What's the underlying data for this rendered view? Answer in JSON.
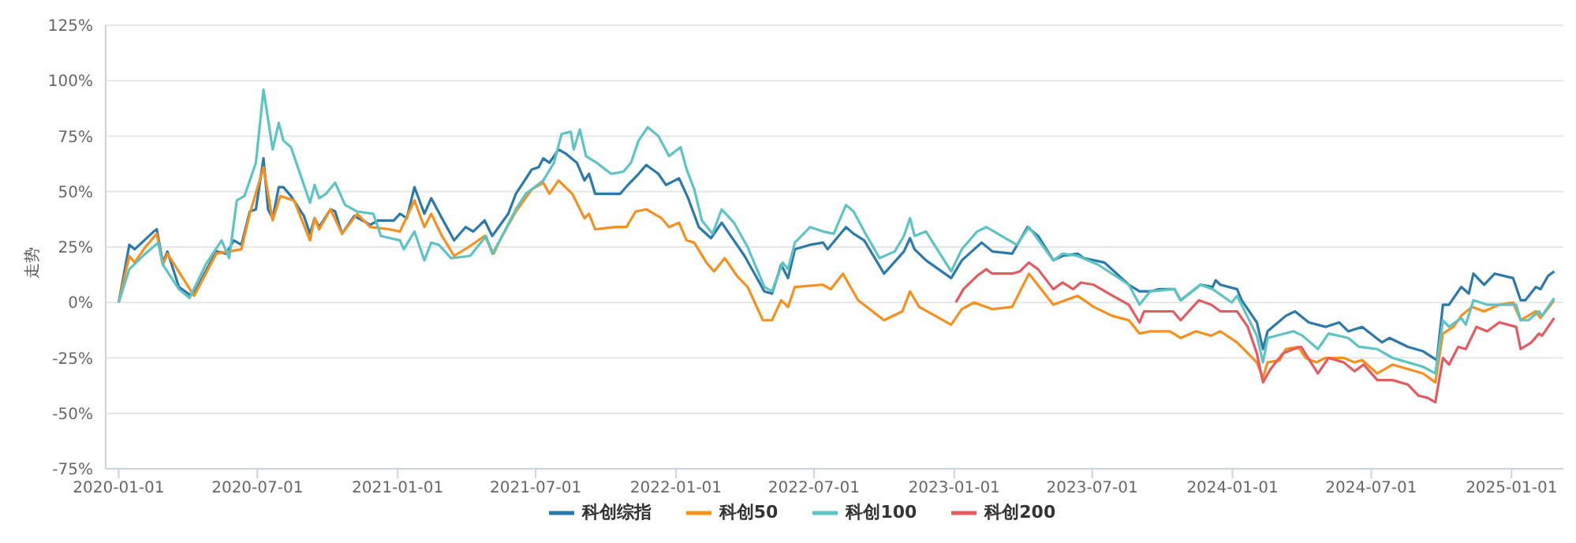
{
  "chart_data": {
    "type": "line",
    "ylabel": "走势",
    "xlim": [
      "2019-12-15",
      "2025-03-10"
    ],
    "xticks": [
      "2020-01-01",
      "2020-07-01",
      "2021-01-01",
      "2021-07-01",
      "2022-01-01",
      "2022-07-01",
      "2023-01-01",
      "2023-07-01",
      "2024-01-01",
      "2024-07-01",
      "2025-01-01"
    ],
    "ylim": [
      -75,
      125
    ],
    "yticks": [
      {
        "value": -75,
        "label": "-75%"
      },
      {
        "value": -50,
        "label": "-50%"
      },
      {
        "value": -25,
        "label": "-25%"
      },
      {
        "value": 0,
        "label": "0%"
      },
      {
        "value": 25,
        "label": "25%"
      },
      {
        "value": 50,
        "label": "50%"
      },
      {
        "value": 75,
        "label": "75%"
      },
      {
        "value": 100,
        "label": "100%"
      },
      {
        "value": 125,
        "label": "125%"
      }
    ],
    "grid": "y",
    "legend": "bottom",
    "marker": "none",
    "line_style": "solid",
    "series": [
      {
        "name": "科创综指",
        "color": "#2b79ab",
        "x": [
          "2020-01-01",
          "2020-01-15",
          "2020-01-22",
          "2020-02-16",
          "2020-02-20",
          "2020-02-28",
          "2020-03-05",
          "2020-03-20",
          "2020-04-03",
          "2020-04-09",
          "2020-04-24",
          "2020-05-08",
          "2020-05-21",
          "2020-05-31",
          "2020-06-10",
          "2020-06-21",
          "2020-06-29",
          "2020-07-09",
          "2020-07-15",
          "2020-07-21",
          "2020-07-29",
          "2020-08-04",
          "2020-08-14",
          "2020-08-31",
          "2020-09-08",
          "2020-09-14",
          "2020-09-20",
          "2020-10-05",
          "2020-10-11",
          "2020-10-20",
          "2020-11-05",
          "2020-11-26",
          "2020-12-06",
          "2020-12-27",
          "2021-01-04",
          "2021-01-13",
          "2021-01-23",
          "2021-02-05",
          "2021-02-14",
          "2021-02-28",
          "2021-03-16",
          "2021-03-31",
          "2021-04-10",
          "2021-04-25",
          "2021-05-05",
          "2021-05-26",
          "2021-06-05",
          "2021-06-26",
          "2021-07-05",
          "2021-07-11",
          "2021-07-19",
          "2021-07-31",
          "2021-08-10",
          "2021-08-24",
          "2021-09-03",
          "2021-09-09",
          "2021-09-17",
          "2021-10-08",
          "2021-10-20",
          "2021-10-30",
          "2021-11-13",
          "2021-11-23",
          "2021-12-09",
          "2021-12-19",
          "2022-01-05",
          "2022-01-17",
          "2022-01-31",
          "2022-02-16",
          "2022-03-02",
          "2022-04-01",
          "2022-04-27",
          "2022-05-07",
          "2022-05-19",
          "2022-05-28",
          "2022-06-06",
          "2022-06-26",
          "2022-07-13",
          "2022-07-19",
          "2022-08-12",
          "2022-08-22",
          "2022-09-05",
          "2022-10-01",
          "2022-10-27",
          "2022-11-04",
          "2022-11-10",
          "2022-11-25",
          "2022-12-28",
          "2023-01-11",
          "2023-02-06",
          "2023-02-20",
          "2023-03-18",
          "2023-04-07",
          "2023-04-21",
          "2023-05-11",
          "2023-05-23",
          "2023-06-12",
          "2023-06-20",
          "2023-07-17",
          "2023-08-18",
          "2023-09-01",
          "2023-09-15",
          "2023-09-27",
          "2023-10-17",
          "2023-10-25",
          "2023-11-20",
          "2023-12-06",
          "2023-12-10",
          "2023-12-16",
          "2024-01-07",
          "2024-01-13",
          "2024-02-02",
          "2024-02-10",
          "2024-02-16",
          "2024-03-11",
          "2024-03-23",
          "2024-04-10",
          "2024-05-02",
          "2024-05-20",
          "2024-06-01",
          "2024-06-19",
          "2024-07-15",
          "2024-07-25",
          "2024-08-18",
          "2024-09-07",
          "2024-09-25",
          "2024-10-03",
          "2024-10-11",
          "2024-10-27",
          "2024-11-06",
          "2024-11-12",
          "2024-11-26",
          "2024-12-10",
          "2025-01-03",
          "2025-01-13",
          "2025-01-19",
          "2025-02-02",
          "2025-02-08",
          "2025-02-18",
          "2025-02-26"
        ],
        "values": [
          0,
          26,
          24,
          32,
          33,
          18,
          23,
          7,
          3.5,
          4,
          14,
          23,
          22,
          28,
          26,
          41,
          42,
          65,
          42,
          38,
          52,
          52,
          48,
          39,
          31,
          38,
          34,
          42,
          41,
          31,
          39,
          35,
          37,
          37,
          40,
          38,
          52,
          40,
          47,
          38,
          28,
          34,
          32,
          37,
          30,
          40,
          49,
          60,
          61,
          65,
          63,
          69,
          67,
          63,
          55,
          58,
          49,
          49,
          49,
          53,
          58,
          62,
          58,
          53,
          56,
          47,
          34,
          29,
          36,
          21,
          5,
          4,
          17,
          11,
          24,
          26,
          27,
          24,
          34,
          31,
          28,
          13,
          23,
          29,
          24,
          19,
          11,
          19,
          27,
          23,
          22,
          34,
          30,
          19,
          21,
          22,
          20,
          18,
          8,
          5,
          5,
          6,
          6,
          1,
          8,
          7,
          10,
          8,
          6,
          1,
          -9,
          -21,
          -13,
          -6,
          -4,
          -9,
          -11,
          -9,
          -13,
          -11,
          -18,
          -16,
          -20,
          -22,
          -26,
          -1,
          -1,
          7,
          4,
          13,
          8,
          13,
          11,
          1,
          1,
          7,
          6,
          12,
          14
        ]
      },
      {
        "name": "科创50",
        "color": "#f5901e",
        "x": [
          "2020-01-01",
          "2020-01-15",
          "2020-01-22",
          "2020-02-05",
          "2020-02-20",
          "2020-02-28",
          "2020-03-05",
          "2020-04-09",
          "2020-05-08",
          "2020-06-10",
          "2020-06-21",
          "2020-07-09",
          "2020-07-21",
          "2020-07-31",
          "2020-08-18",
          "2020-09-08",
          "2020-09-14",
          "2020-09-20",
          "2020-10-05",
          "2020-10-20",
          "2020-11-09",
          "2020-11-26",
          "2020-12-21",
          "2021-01-04",
          "2021-01-23",
          "2021-02-05",
          "2021-02-14",
          "2021-02-28",
          "2021-03-16",
          "2021-04-04",
          "2021-04-25",
          "2021-05-07",
          "2021-05-15",
          "2021-06-05",
          "2021-06-26",
          "2021-07-11",
          "2021-07-19",
          "2021-07-31",
          "2021-08-18",
          "2021-09-03",
          "2021-09-09",
          "2021-09-17",
          "2021-10-14",
          "2021-10-28",
          "2021-11-09",
          "2021-11-23",
          "2021-12-13",
          "2021-12-23",
          "2022-01-05",
          "2022-01-15",
          "2022-01-25",
          "2022-02-10",
          "2022-02-20",
          "2022-03-06",
          "2022-03-22",
          "2022-04-05",
          "2022-04-25",
          "2022-05-07",
          "2022-05-19",
          "2022-05-28",
          "2022-06-06",
          "2022-07-13",
          "2022-07-23",
          "2022-08-08",
          "2022-08-28",
          "2022-10-01",
          "2022-10-25",
          "2022-11-04",
          "2022-11-16",
          "2022-12-28",
          "2023-01-11",
          "2023-01-27",
          "2023-02-20",
          "2023-03-18",
          "2023-04-09",
          "2023-05-11",
          "2023-06-12",
          "2023-07-03",
          "2023-07-27",
          "2023-08-18",
          "2023-09-01",
          "2023-09-15",
          "2023-10-11",
          "2023-10-25",
          "2023-11-14",
          "2023-12-04",
          "2023-12-16",
          "2024-01-07",
          "2024-02-02",
          "2024-02-10",
          "2024-02-16",
          "2024-03-03",
          "2024-03-11",
          "2024-03-27",
          "2024-04-06",
          "2024-04-20",
          "2024-05-02",
          "2024-05-26",
          "2024-06-09",
          "2024-06-19",
          "2024-07-09",
          "2024-07-29",
          "2024-08-18",
          "2024-09-07",
          "2024-09-23",
          "2024-10-03",
          "2024-10-17",
          "2024-10-27",
          "2024-11-10",
          "2024-11-26",
          "2024-12-16",
          "2025-01-03",
          "2025-01-13",
          "2025-02-02",
          "2025-02-08",
          "2025-02-26"
        ],
        "values": [
          0,
          21,
          18,
          25,
          31,
          17,
          22,
          3,
          22,
          24,
          40,
          61,
          37,
          48,
          46,
          28,
          38,
          33,
          42,
          31,
          40,
          34,
          33,
          32,
          46,
          34,
          40,
          30,
          21,
          25,
          30,
          22,
          28,
          41,
          51,
          54,
          49,
          55,
          49,
          38,
          40,
          33,
          34,
          34,
          41,
          42,
          38,
          34,
          36,
          28,
          27,
          18,
          14,
          20,
          12,
          7,
          -8,
          -8,
          1,
          -2,
          7,
          8,
          6,
          13,
          1,
          -8,
          -4,
          5,
          -2,
          -10,
          -3,
          0,
          -3,
          -2,
          13,
          -1,
          3,
          -2,
          -6,
          -8,
          -14,
          -13,
          -13,
          -16,
          -13,
          -15,
          -13,
          -18,
          -27,
          -34,
          -27,
          -26,
          -21,
          -20,
          -25,
          -27,
          -25,
          -25,
          -27,
          -26,
          -32,
          -28,
          -30,
          -32,
          -36,
          -14,
          -11,
          -6,
          -2,
          -4,
          -1,
          0,
          -8,
          -4,
          -7,
          1
        ]
      },
      {
        "name": "科创100",
        "color": "#5ec3c3",
        "x": [
          "2020-01-01",
          "2020-01-15",
          "2020-02-05",
          "2020-02-22",
          "2020-02-28",
          "2020-03-20",
          "2020-04-03",
          "2020-04-24",
          "2020-05-15",
          "2020-05-25",
          "2020-06-04",
          "2020-06-14",
          "2020-06-29",
          "2020-07-09",
          "2020-07-21",
          "2020-07-29",
          "2020-08-04",
          "2020-08-14",
          "2020-09-08",
          "2020-09-14",
          "2020-09-20",
          "2020-09-29",
          "2020-10-11",
          "2020-10-24",
          "2020-11-09",
          "2020-11-30",
          "2020-12-10",
          "2021-01-04",
          "2021-01-09",
          "2021-01-23",
          "2021-02-05",
          "2021-02-14",
          "2021-02-24",
          "2021-03-12",
          "2021-04-06",
          "2021-04-27",
          "2021-05-05",
          "2021-05-15",
          "2021-06-05",
          "2021-06-18",
          "2021-07-11",
          "2021-07-25",
          "2021-08-04",
          "2021-08-16",
          "2021-08-20",
          "2021-08-28",
          "2021-09-05",
          "2021-09-19",
          "2021-10-08",
          "2021-10-24",
          "2021-11-03",
          "2021-11-13",
          "2021-11-25",
          "2021-12-09",
          "2021-12-23",
          "2022-01-07",
          "2022-01-15",
          "2022-01-25",
          "2022-02-04",
          "2022-02-18",
          "2022-03-02",
          "2022-03-18",
          "2022-04-05",
          "2022-04-27",
          "2022-05-07",
          "2022-05-21",
          "2022-05-28",
          "2022-06-06",
          "2022-06-26",
          "2022-07-13",
          "2022-07-27",
          "2022-08-12",
          "2022-08-22",
          "2022-09-05",
          "2022-09-25",
          "2022-10-15",
          "2022-10-27",
          "2022-11-04",
          "2022-11-10",
          "2022-11-25",
          "2022-12-28",
          "2023-01-11",
          "2023-01-31",
          "2023-02-12",
          "2023-03-04",
          "2023-03-24",
          "2023-04-09",
          "2023-05-11",
          "2023-05-23",
          "2023-06-12",
          "2023-07-09",
          "2023-08-18",
          "2023-09-01",
          "2023-09-15",
          "2023-10-17",
          "2023-10-25",
          "2023-11-20",
          "2023-12-06",
          "2023-12-31",
          "2024-01-07",
          "2024-02-02",
          "2024-02-10",
          "2024-02-16",
          "2024-03-21",
          "2024-04-02",
          "2024-04-22",
          "2024-05-06",
          "2024-06-01",
          "2024-06-15",
          "2024-07-09",
          "2024-07-29",
          "2024-08-18",
          "2024-09-07",
          "2024-09-23",
          "2024-10-03",
          "2024-10-11",
          "2024-10-27",
          "2024-11-02",
          "2024-11-12",
          "2024-11-30",
          "2024-12-16",
          "2025-01-07",
          "2025-01-13",
          "2025-01-23",
          "2025-02-06",
          "2025-02-10",
          "2025-02-26"
        ],
        "values": [
          0,
          15,
          22,
          27,
          17,
          6,
          2,
          17,
          28,
          20,
          46,
          48,
          63,
          96,
          69,
          81,
          73,
          70,
          45,
          53,
          47,
          49,
          54,
          44,
          41,
          40,
          30,
          28,
          24,
          32,
          19,
          27,
          26,
          20,
          21,
          30,
          22,
          28,
          42,
          49,
          55,
          63,
          76,
          77,
          69,
          78,
          66,
          63,
          58,
          59,
          63,
          73,
          79,
          75,
          66,
          70,
          60,
          51,
          37,
          31,
          42,
          36,
          25,
          7,
          5,
          18,
          15,
          27,
          34,
          32,
          31,
          44,
          41,
          32,
          20,
          23,
          30,
          38,
          30,
          32,
          14,
          24,
          32,
          34,
          30,
          26,
          34,
          19,
          22,
          21,
          17,
          8,
          -1,
          5,
          6,
          1,
          8,
          6,
          0,
          3,
          -15,
          -27,
          -16,
          -13,
          -15,
          -21,
          -14,
          -16,
          -20,
          -21,
          -25,
          -27,
          -29,
          -32,
          -8,
          -11,
          -7,
          -10,
          1,
          -1,
          -1,
          -1,
          -8,
          -8,
          -4,
          -6,
          2
        ]
      },
      {
        "name": "科创200",
        "color": "#e25b60",
        "x": [
          "2023-01-03",
          "2023-01-13",
          "2023-01-31",
          "2023-02-12",
          "2023-02-20",
          "2023-03-18",
          "2023-03-28",
          "2023-04-09",
          "2023-04-21",
          "2023-05-11",
          "2023-05-23",
          "2023-06-06",
          "2023-06-16",
          "2023-07-03",
          "2023-07-23",
          "2023-08-18",
          "2023-09-01",
          "2023-09-07",
          "2023-09-21",
          "2023-10-15",
          "2023-10-25",
          "2023-11-18",
          "2023-12-04",
          "2023-12-16",
          "2024-01-07",
          "2024-01-21",
          "2024-02-02",
          "2024-02-10",
          "2024-02-20",
          "2024-03-07",
          "2024-03-21",
          "2024-03-31",
          "2024-04-22",
          "2024-05-06",
          "2024-05-26",
          "2024-06-09",
          "2024-06-21",
          "2024-07-09",
          "2024-07-29",
          "2024-08-18",
          "2024-09-01",
          "2024-09-13",
          "2024-09-23",
          "2024-10-03",
          "2024-10-11",
          "2024-10-23",
          "2024-11-02",
          "2024-11-16",
          "2024-11-30",
          "2024-12-16",
          "2025-01-07",
          "2025-01-13",
          "2025-01-27",
          "2025-02-06",
          "2025-02-10",
          "2025-02-26"
        ],
        "values": [
          0,
          6,
          12,
          15,
          13,
          13,
          14,
          18,
          15,
          6,
          9,
          6,
          9,
          8,
          4,
          -1,
          -9,
          -4,
          -4,
          -4,
          -8,
          1,
          -1,
          -4,
          -4,
          -11,
          -23,
          -36,
          -30,
          -23,
          -21,
          -20,
          -32,
          -25,
          -27,
          -31,
          -28,
          -35,
          -35,
          -37,
          -42,
          -43,
          -45,
          -25,
          -28,
          -20,
          -21,
          -11,
          -13,
          -9,
          -11,
          -21,
          -18,
          -14,
          -15,
          -7
        ]
      }
    ]
  }
}
